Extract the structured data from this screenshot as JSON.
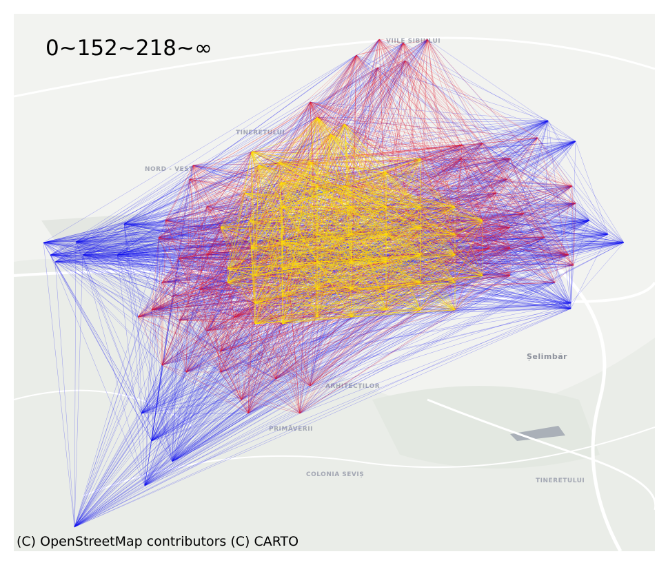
{
  "legend_title": "0~152~218~∞",
  "attribution": "(C) OpenStreetMap contributors (C) CARTO",
  "place_labels": [
    "VIILE SIBIULUI",
    "TINERETULUI",
    "NORD - VEST",
    "ARHITECȚILOR",
    "PRIMĂVERII",
    "COLONIA SEVIȘ",
    "Șelimbăr",
    "TINERETULUI"
  ],
  "edge_classes": [
    {
      "range": "0-152",
      "color": "#ffe000"
    },
    {
      "range": "152-218",
      "color": "#e0182e"
    },
    {
      "range": "218-∞",
      "color": "#1010ee"
    }
  ],
  "colors": {
    "basemap": "#f2f3f0",
    "road": "#ffffff",
    "water": "#aab0b8",
    "park": "#e3e8e1"
  }
}
